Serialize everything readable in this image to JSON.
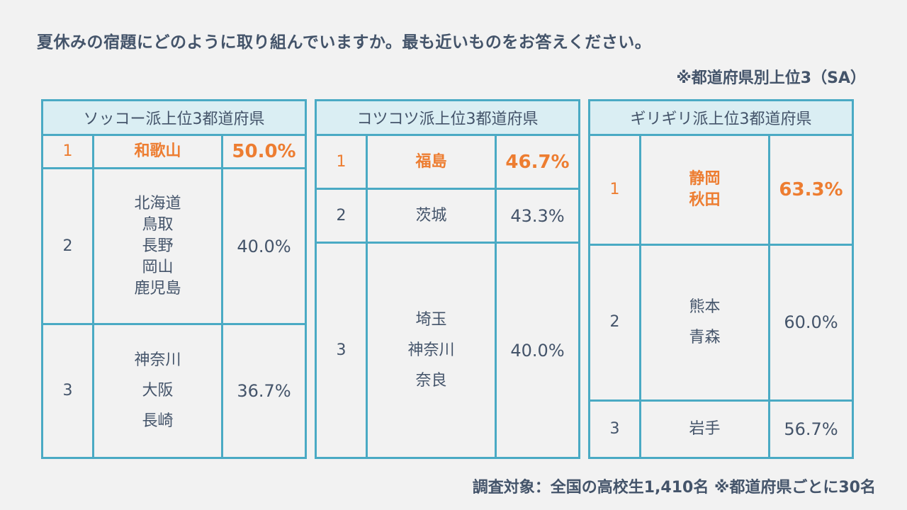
{
  "title": "夏休みの宿題にどのように取り組んでいますか。最も近いものをお答えください。",
  "note": "※都道府県別上位3（SA）",
  "footer": "調査対象：全国の高校生1,410名 ※都道府県ごとに30名",
  "colors": {
    "accent": "#ed7d31",
    "border": "#4aaac4",
    "header": "#daeef3",
    "text": "#44546a"
  },
  "tables": [
    {
      "header": "ソッコー派上位3都道府県",
      "rows": [
        {
          "rank": "1",
          "prefs": [
            "和歌山"
          ],
          "pct": "50.0%"
        },
        {
          "rank": "2",
          "prefs": [
            "北海道",
            "鳥取",
            "長野",
            "岡山",
            "鹿児島"
          ],
          "pct": "40.0%"
        },
        {
          "rank": "3",
          "prefs": [
            "神奈川",
            "大阪",
            "長崎"
          ],
          "pct": "36.7%"
        }
      ]
    },
    {
      "header": "コツコツ派上位3都道府県",
      "rows": [
        {
          "rank": "1",
          "prefs": [
            "福島"
          ],
          "pct": "46.7%"
        },
        {
          "rank": "2",
          "prefs": [
            "茨城"
          ],
          "pct": "43.3%"
        },
        {
          "rank": "3",
          "prefs": [
            "埼玉",
            "神奈川",
            "奈良"
          ],
          "pct": "40.0%"
        }
      ]
    },
    {
      "header": "ギリギリ派上位3都道府県",
      "rows": [
        {
          "rank": "1",
          "prefs": [
            "静岡",
            "秋田"
          ],
          "pct": "63.3%"
        },
        {
          "rank": "2",
          "prefs": [
            "熊本",
            "青森"
          ],
          "pct": "60.0%"
        },
        {
          "rank": "3",
          "prefs": [
            "岩手"
          ],
          "pct": "56.7%"
        }
      ]
    }
  ]
}
